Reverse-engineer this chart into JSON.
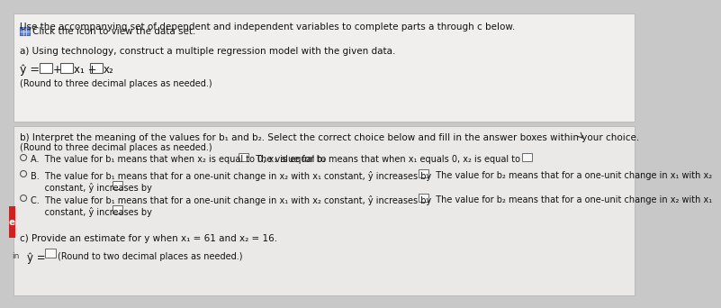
{
  "bg_color": "#c8c8c8",
  "panel1_bg": "#f0efed",
  "panel2_bg": "#eae9e7",
  "title_line1": "Use the accompanying set of dependent and independent variables to complete parts a through c below.",
  "title_line2": "Click the icon to view the data set.",
  "section_a_header": "a) Using technology, construct a multiple regression model with the given data.",
  "section_a_note": "(Round to three decimal places as needed.)",
  "section_b_header": "b) Interpret the meaning of the values for b₁ and b₂. Select the correct choice below and fill in the answer boxes within your choice.",
  "section_b_note": "(Round to three decimal places as needed.)",
  "optA_text": "A.  The value for b₁ means that when x₂ is equal to 0, x₁ is equal to      The value for b₂ means that when x₁ equals 0, x₂ is equal to",
  "optB_line1": "B.  The value for b₁ means that for a one-unit change in x₂ with x₁ constant, ŷ increases by      The value for b₂ means that for a one-unit change in x₁ with x₂",
  "optB_line2": "     constant, ŷ increases by",
  "optC_line1": "C.  The value for b₁ means that for a one-unit change in x₁ with x₂ constant, ŷ increases by      The value for b₂ means that for a one-unit change in x₂ with x₁",
  "optC_line2": "     constant, ŷ increases by",
  "section_c_header": "c) Provide an estimate for y when x₁ = 61 and x₂ = 16.",
  "section_c_note": "(Round to two decimal places as needed.)"
}
